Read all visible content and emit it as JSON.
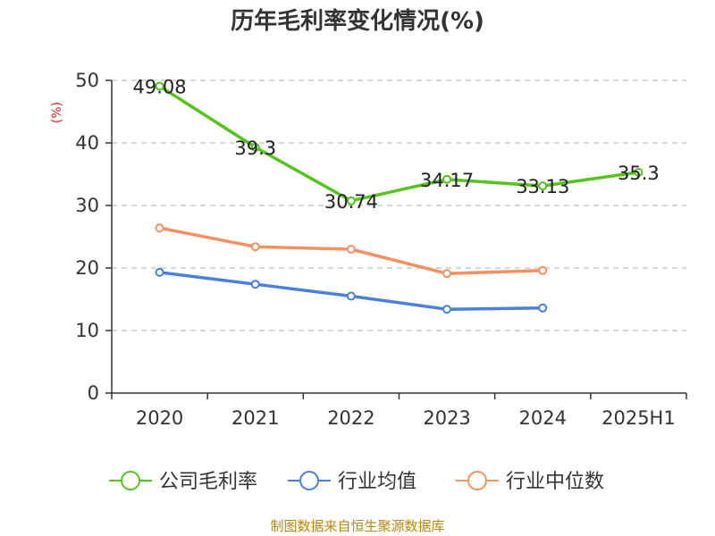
{
  "chart_data": {
    "type": "line",
    "title": "历年毛利率变化情况(%)",
    "ylabel": "(%)",
    "categories": [
      "2020",
      "2021",
      "2022",
      "2023",
      "2024",
      "2025H1"
    ],
    "yticks": [
      "0",
      "10",
      "20",
      "30",
      "40",
      "50"
    ],
    "ylim": [
      0,
      50
    ],
    "grid": true,
    "legend_position": "bottom",
    "series": [
      {
        "name": "公司毛利率",
        "color": "#52c41a",
        "values": [
          49.08,
          39.3,
          30.74,
          34.17,
          33.13,
          35.3
        ],
        "labels": [
          "49.08",
          "39.3",
          "30.74",
          "34.17",
          "33.13",
          "35.3"
        ]
      },
      {
        "name": "行业均值",
        "color": "#4a7fdb",
        "values": [
          19.3,
          17.4,
          15.5,
          13.4,
          13.6,
          null
        ]
      },
      {
        "name": "行业中位数",
        "color": "#f59060",
        "values": [
          26.4,
          23.4,
          23.0,
          19.1,
          19.6,
          null
        ]
      }
    ]
  },
  "colors": {
    "axis": "#333333",
    "grid": "#cccccc",
    "ylabel": "#e02020",
    "source": "#b8860b"
  },
  "source": "制图数据来自恒生聚源数据库"
}
